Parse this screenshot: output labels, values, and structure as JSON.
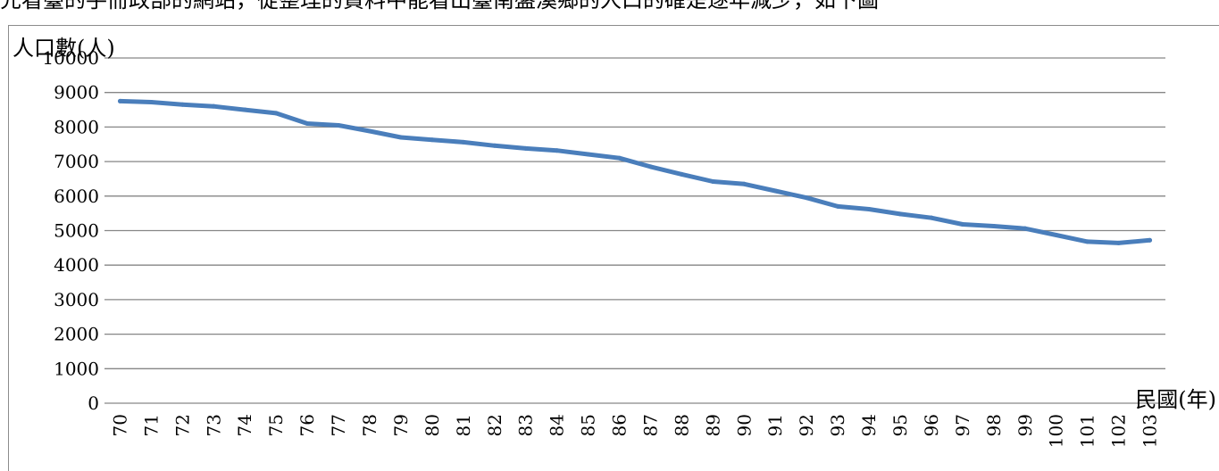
{
  "header": {
    "clipped_text": "先看臺的手冊政部的網站，從整理的資料中能看出臺南盤溪鄉的人口的確是逐年減少，如下圖"
  },
  "chart_data": {
    "type": "line",
    "title": "",
    "xlabel": "民國(年)",
    "ylabel": "人口數(人)",
    "ylim": [
      0,
      10000
    ],
    "yticks": [
      0,
      1000,
      2000,
      3000,
      4000,
      5000,
      6000,
      7000,
      8000,
      9000,
      10000
    ],
    "grid": true,
    "legend": "none",
    "line_color": "#4a7ebb",
    "gridline_color": "#868686",
    "categories": [
      "70",
      "71",
      "72",
      "73",
      "74",
      "75",
      "76",
      "77",
      "78",
      "79",
      "80",
      "81",
      "82",
      "83",
      "84",
      "85",
      "86",
      "87",
      "88",
      "89",
      "90",
      "91",
      "92",
      "93",
      "94",
      "95",
      "96",
      "97",
      "98",
      "99",
      "100",
      "101",
      "102",
      "103"
    ],
    "series": [
      {
        "values": [
          8750,
          8720,
          8650,
          8600,
          8500,
          8400,
          8100,
          8050,
          7880,
          7700,
          7630,
          7560,
          7460,
          7380,
          7320,
          7210,
          7100,
          6850,
          6630,
          6420,
          6350,
          6150,
          5950,
          5700,
          5620,
          5480,
          5370,
          5180,
          5130,
          5060,
          4870,
          4680,
          4640,
          4720
        ]
      }
    ]
  }
}
